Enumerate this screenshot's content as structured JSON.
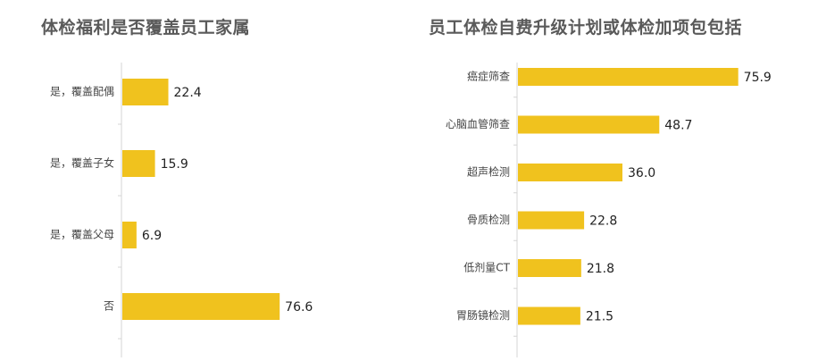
{
  "colors": {
    "bar": "#F0C21E"
  },
  "chart_data": [
    {
      "type": "bar",
      "orientation": "horizontal",
      "title": "体检福利是否覆盖员工家属",
      "categories": [
        "是，覆盖配偶",
        "是，覆盖子女",
        "是，覆盖父母",
        "否"
      ],
      "values": [
        22.4,
        15.9,
        6.9,
        76.6
      ],
      "value_labels": [
        "22.4",
        "15.9",
        "6.9",
        "76.6"
      ],
      "xlim": [
        0,
        100
      ],
      "grid": false,
      "legend": "none"
    },
    {
      "type": "bar",
      "orientation": "horizontal",
      "title": "员工体检自费升级计划或体检加项包包括",
      "categories": [
        "癌症筛查",
        "心脑血管筛查",
        "超声检测",
        "骨质检测",
        "低剂量CT",
        "胃肠镜检测"
      ],
      "values": [
        75.9,
        48.7,
        36.0,
        22.8,
        21.8,
        21.5
      ],
      "value_labels": [
        "75.9",
        "48.7",
        "36.0",
        "22.8",
        "21.8",
        "21.5"
      ],
      "xlim": [
        0,
        100
      ],
      "grid": false,
      "legend": "none"
    }
  ]
}
